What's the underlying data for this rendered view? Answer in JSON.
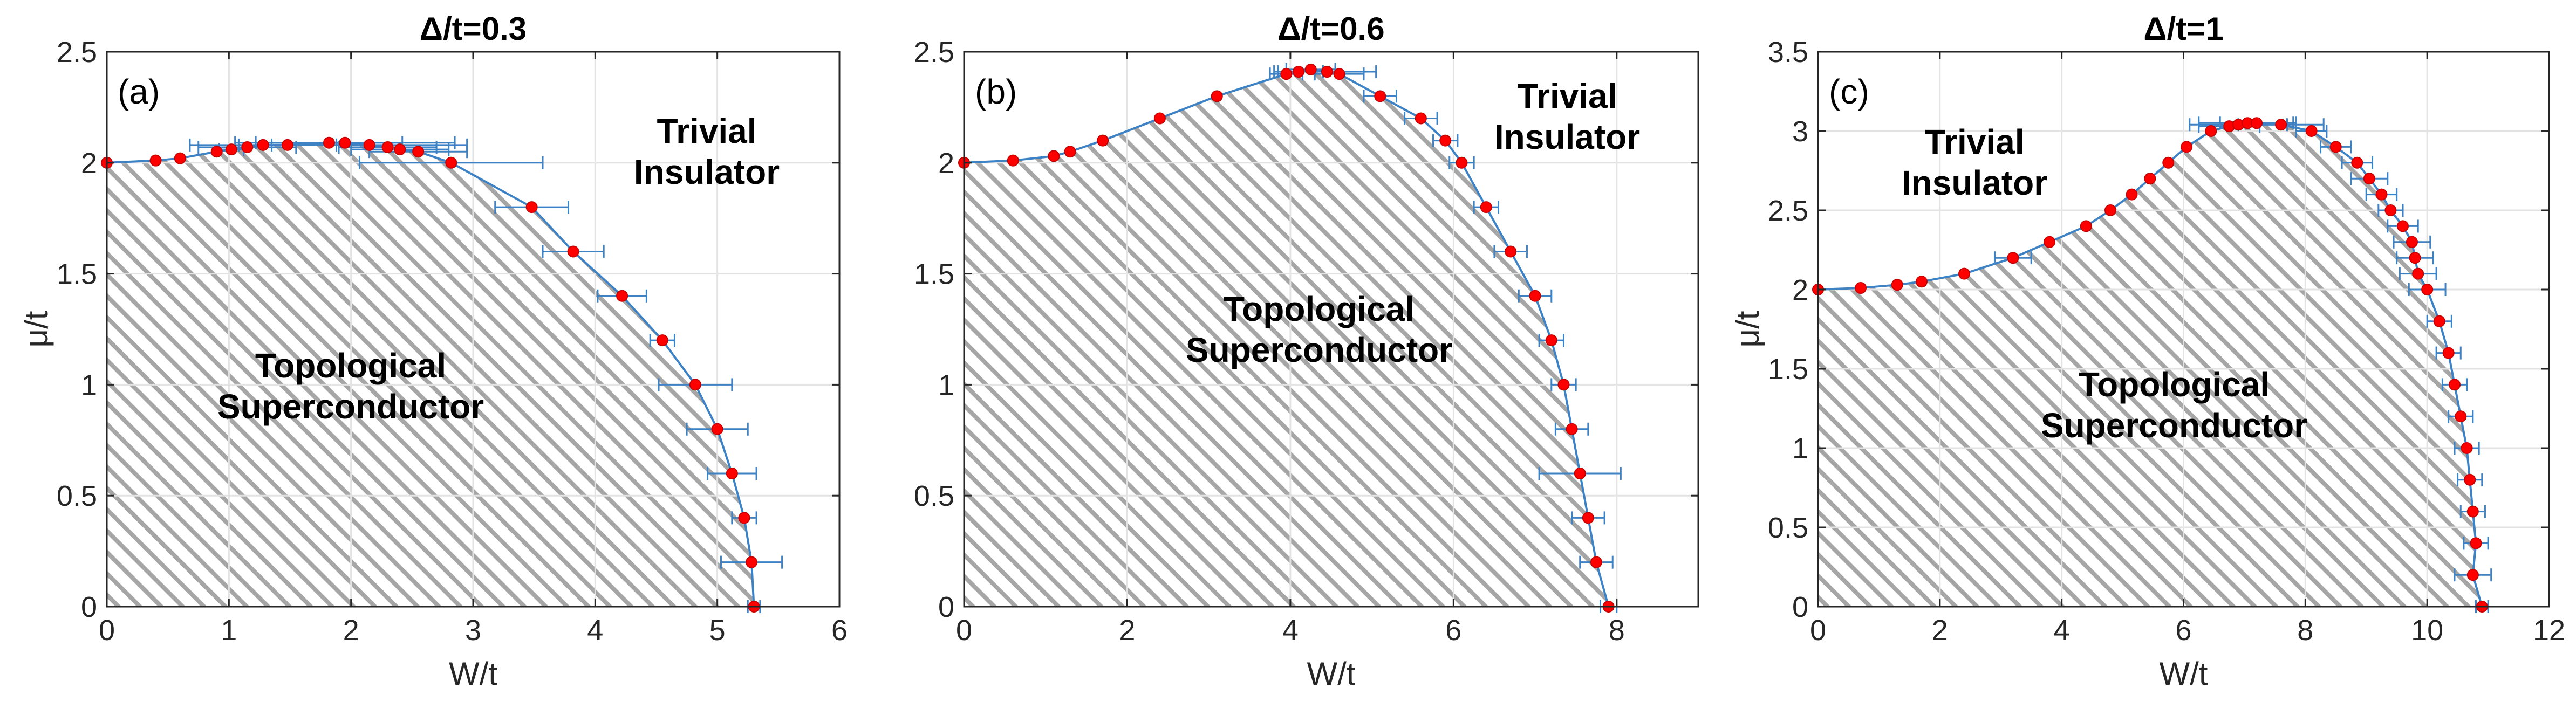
{
  "colors": {
    "curve": "#3d82c4",
    "marker": "#ff0000",
    "hatch": "#a6a6a6",
    "grid": "#e3e3e3"
  },
  "chart_data": [
    {
      "type": "line",
      "panel_label": "(a)",
      "title": "Δ/t=0.3",
      "xlabel": "W/t",
      "ylabel": "μ/t",
      "xlim": [
        0,
        6
      ],
      "ylim": [
        0,
        2.5
      ],
      "xticks": [
        0,
        1,
        2,
        3,
        4,
        5,
        6
      ],
      "yticks": [
        0,
        0.5,
        1,
        1.5,
        2,
        2.5
      ],
      "grid": true,
      "regions": [
        {
          "label_lines": [
            "Topological",
            "Superconductor"
          ],
          "hatched": true
        },
        {
          "label_lines": [
            "Trivial",
            "Insulator"
          ],
          "hatched": false
        }
      ],
      "points": [
        {
          "x": 0,
          "y": 2.0,
          "xerr": 0
        },
        {
          "x": 0.4,
          "y": 2.01,
          "xerr": 0
        },
        {
          "x": 0.6,
          "y": 2.02,
          "xerr": 0
        },
        {
          "x": 0.9,
          "y": 2.05,
          "xerr": 0
        },
        {
          "x": 1.02,
          "y": 2.06,
          "xerr": 0.1
        },
        {
          "x": 1.15,
          "y": 2.07,
          "xerr": 0.4
        },
        {
          "x": 1.28,
          "y": 2.08,
          "xerr": 0.6
        },
        {
          "x": 1.48,
          "y": 2.08,
          "xerr": 0.4
        },
        {
          "x": 1.82,
          "y": 2.09,
          "xerr": 0.6
        },
        {
          "x": 1.95,
          "y": 2.09,
          "xerr": 0.9
        },
        {
          "x": 2.15,
          "y": 2.08,
          "xerr": 0.8
        },
        {
          "x": 2.3,
          "y": 2.07,
          "xerr": 0.4
        },
        {
          "x": 2.4,
          "y": 2.06,
          "xerr": 0.4
        },
        {
          "x": 2.55,
          "y": 2.05,
          "xerr": 0.4
        },
        {
          "x": 2.82,
          "y": 2.0,
          "xerr": 0.75
        },
        {
          "x": 3.48,
          "y": 1.8,
          "xerr": 0.3
        },
        {
          "x": 3.82,
          "y": 1.6,
          "xerr": 0.25
        },
        {
          "x": 4.22,
          "y": 1.4,
          "xerr": 0.2
        },
        {
          "x": 4.55,
          "y": 1.2,
          "xerr": 0.1
        },
        {
          "x": 4.82,
          "y": 1.0,
          "xerr": 0.3
        },
        {
          "x": 5.0,
          "y": 0.8,
          "xerr": 0.25
        },
        {
          "x": 5.12,
          "y": 0.6,
          "xerr": 0.2
        },
        {
          "x": 5.22,
          "y": 0.4,
          "xerr": 0.1
        },
        {
          "x": 5.28,
          "y": 0.2,
          "xerr": 0.25
        },
        {
          "x": 5.3,
          "y": 0.0,
          "xerr": 0.05
        }
      ]
    },
    {
      "type": "line",
      "panel_label": "(b)",
      "title": "Δ/t=0.6",
      "xlabel": "W/t",
      "ylabel": "",
      "xlim": [
        0,
        9
      ],
      "ylim": [
        0,
        2.5
      ],
      "xticks": [
        0,
        2,
        4,
        6,
        8
      ],
      "yticks": [
        0,
        0.5,
        1,
        1.5,
        2,
        2.5
      ],
      "grid": true,
      "regions": [
        {
          "label_lines": [
            "Topological",
            "Superconductor"
          ],
          "hatched": true
        },
        {
          "label_lines": [
            "Trivial",
            "Insulator"
          ],
          "hatched": false
        }
      ],
      "points": [
        {
          "x": 0,
          "y": 2.0,
          "xerr": 0
        },
        {
          "x": 0.6,
          "y": 2.01,
          "xerr": 0
        },
        {
          "x": 1.1,
          "y": 2.03,
          "xerr": 0
        },
        {
          "x": 1.3,
          "y": 2.05,
          "xerr": 0
        },
        {
          "x": 1.7,
          "y": 2.1,
          "xerr": 0
        },
        {
          "x": 2.4,
          "y": 2.2,
          "xerr": 0
        },
        {
          "x": 3.1,
          "y": 2.3,
          "xerr": 0
        },
        {
          "x": 3.95,
          "y": 2.4,
          "xerr": 0.2
        },
        {
          "x": 4.1,
          "y": 2.41,
          "xerr": 0.3
        },
        {
          "x": 4.25,
          "y": 2.42,
          "xerr": 0.3
        },
        {
          "x": 4.45,
          "y": 2.41,
          "xerr": 0.6
        },
        {
          "x": 4.6,
          "y": 2.4,
          "xerr": 0.3
        },
        {
          "x": 5.1,
          "y": 2.3,
          "xerr": 0.2
        },
        {
          "x": 5.6,
          "y": 2.2,
          "xerr": 0.2
        },
        {
          "x": 5.9,
          "y": 2.1,
          "xerr": 0.15
        },
        {
          "x": 6.1,
          "y": 2.0,
          "xerr": 0.15
        },
        {
          "x": 6.4,
          "y": 1.8,
          "xerr": 0.15
        },
        {
          "x": 6.7,
          "y": 1.6,
          "xerr": 0.2
        },
        {
          "x": 7.0,
          "y": 1.4,
          "xerr": 0.2
        },
        {
          "x": 7.2,
          "y": 1.2,
          "xerr": 0.15
        },
        {
          "x": 7.35,
          "y": 1.0,
          "xerr": 0.15
        },
        {
          "x": 7.45,
          "y": 0.8,
          "xerr": 0.2
        },
        {
          "x": 7.55,
          "y": 0.6,
          "xerr": 0.5
        },
        {
          "x": 7.65,
          "y": 0.4,
          "xerr": 0.2
        },
        {
          "x": 7.75,
          "y": 0.2,
          "xerr": 0.2
        },
        {
          "x": 7.9,
          "y": 0.0,
          "xerr": 0.1
        }
      ]
    },
    {
      "type": "line",
      "panel_label": "(c)",
      "title": "Δ/t=1",
      "xlabel": "W/t",
      "ylabel": "μ/t",
      "xlim": [
        0,
        12
      ],
      "ylim": [
        0,
        3.5
      ],
      "xticks": [
        0,
        2,
        4,
        6,
        8,
        10,
        12
      ],
      "yticks": [
        0,
        0.5,
        1,
        1.5,
        2,
        2.5,
        3,
        3.5
      ],
      "grid": true,
      "regions": [
        {
          "label_lines": [
            "Topological",
            "Superconductor"
          ],
          "hatched": true
        },
        {
          "label_lines": [
            "Trivial",
            "Insulator"
          ],
          "hatched": false
        }
      ],
      "points": [
        {
          "x": 0,
          "y": 2.0,
          "xerr": 0
        },
        {
          "x": 0.7,
          "y": 2.01,
          "xerr": 0
        },
        {
          "x": 1.3,
          "y": 2.03,
          "xerr": 0
        },
        {
          "x": 1.7,
          "y": 2.05,
          "xerr": 0
        },
        {
          "x": 2.4,
          "y": 2.1,
          "xerr": 0
        },
        {
          "x": 3.2,
          "y": 2.2,
          "xerr": 0.3
        },
        {
          "x": 3.8,
          "y": 2.3,
          "xerr": 0
        },
        {
          "x": 4.4,
          "y": 2.4,
          "xerr": 0
        },
        {
          "x": 4.8,
          "y": 2.5,
          "xerr": 0
        },
        {
          "x": 5.15,
          "y": 2.6,
          "xerr": 0
        },
        {
          "x": 5.45,
          "y": 2.7,
          "xerr": 0
        },
        {
          "x": 5.75,
          "y": 2.8,
          "xerr": 0
        },
        {
          "x": 6.05,
          "y": 2.9,
          "xerr": 0
        },
        {
          "x": 6.45,
          "y": 3.0,
          "xerr": 0
        },
        {
          "x": 6.75,
          "y": 3.03,
          "xerr": 0.5
        },
        {
          "x": 6.9,
          "y": 3.04,
          "xerr": 0.8
        },
        {
          "x": 7.05,
          "y": 3.05,
          "xerr": 0.8
        },
        {
          "x": 7.2,
          "y": 3.05,
          "xerr": 0.6
        },
        {
          "x": 7.6,
          "y": 3.04,
          "xerr": 0.7
        },
        {
          "x": 8.1,
          "y": 3.0,
          "xerr": 0.25
        },
        {
          "x": 8.5,
          "y": 2.9,
          "xerr": 0.25
        },
        {
          "x": 8.85,
          "y": 2.8,
          "xerr": 0.25
        },
        {
          "x": 9.05,
          "y": 2.7,
          "xerr": 0.3
        },
        {
          "x": 9.25,
          "y": 2.6,
          "xerr": 0.25
        },
        {
          "x": 9.4,
          "y": 2.5,
          "xerr": 0.2
        },
        {
          "x": 9.6,
          "y": 2.4,
          "xerr": 0.25
        },
        {
          "x": 9.75,
          "y": 2.3,
          "xerr": 0.3
        },
        {
          "x": 9.8,
          "y": 2.2,
          "xerr": 0.3
        },
        {
          "x": 9.85,
          "y": 2.1,
          "xerr": 0.3
        },
        {
          "x": 10.0,
          "y": 2.0,
          "xerr": 0.3
        },
        {
          "x": 10.2,
          "y": 1.8,
          "xerr": 0.2
        },
        {
          "x": 10.35,
          "y": 1.6,
          "xerr": 0.2
        },
        {
          "x": 10.45,
          "y": 1.4,
          "xerr": 0.2
        },
        {
          "x": 10.55,
          "y": 1.2,
          "xerr": 0.2
        },
        {
          "x": 10.65,
          "y": 1.0,
          "xerr": 0.2
        },
        {
          "x": 10.7,
          "y": 0.8,
          "xerr": 0.2
        },
        {
          "x": 10.75,
          "y": 0.6,
          "xerr": 0.2
        },
        {
          "x": 10.8,
          "y": 0.4,
          "xerr": 0.2
        },
        {
          "x": 10.75,
          "y": 0.2,
          "xerr": 0.3
        },
        {
          "x": 10.9,
          "y": 0.0,
          "xerr": 0.1
        }
      ]
    }
  ]
}
